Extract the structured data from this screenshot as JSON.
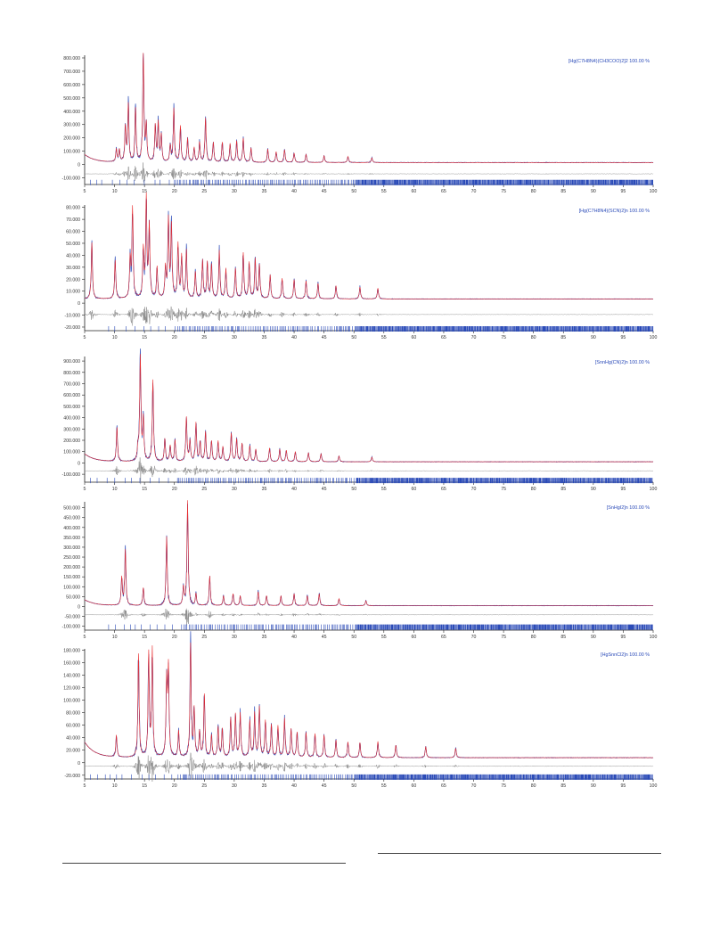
{
  "chart_data": [
    {
      "type": "line",
      "legend": "[Hg(C7H8N4)(CH3COO)2]2   100.00 %",
      "x_ticks": [
        5,
        10,
        15,
        20,
        25,
        30,
        35,
        40,
        45,
        50,
        55,
        60,
        65,
        70,
        75,
        80,
        85,
        90,
        95,
        100
      ],
      "y_ticks": [
        800000,
        700000,
        600000,
        500000,
        400000,
        300000,
        200000,
        100000,
        0,
        -100000
      ],
      "y_tick_labels": [
        "800.000",
        "700.000",
        "600.000",
        "500.000",
        "400.000",
        "300.000",
        "200.000",
        "100.000",
        "0",
        "-100.000"
      ],
      "xlim": [
        5,
        100
      ],
      "ylim": [
        -150000,
        820000
      ],
      "diff_offset": -70000,
      "tick_y": -135000,
      "peaks": [
        [
          10.3,
          95000
        ],
        [
          10.8,
          90000
        ],
        [
          11.8,
          260000
        ],
        [
          12.3,
          430000
        ],
        [
          13.5,
          400000
        ],
        [
          14.8,
          800000
        ],
        [
          15.3,
          270000
        ],
        [
          16.8,
          270000
        ],
        [
          17.3,
          290000
        ],
        [
          17.8,
          200000
        ],
        [
          19.3,
          120000
        ],
        [
          19.9,
          400000
        ],
        [
          21,
          270000
        ],
        [
          22.2,
          180000
        ],
        [
          23.3,
          110000
        ],
        [
          24.2,
          150000
        ],
        [
          25.2,
          330000
        ],
        [
          26.5,
          150000
        ],
        [
          28,
          150000
        ],
        [
          29.3,
          140000
        ],
        [
          30.4,
          160000
        ],
        [
          31.5,
          180000
        ],
        [
          32.8,
          110000
        ],
        [
          35.6,
          100000
        ],
        [
          37,
          80000
        ],
        [
          38.4,
          95000
        ],
        [
          40,
          70000
        ],
        [
          42,
          60000
        ],
        [
          45,
          50000
        ],
        [
          49,
          45000
        ],
        [
          53,
          35000
        ]
      ],
      "decay": {
        "amp": 60000,
        "rate": 0.6
      },
      "base": 15000
    },
    {
      "type": "line",
      "legend": "[Hg(C7H8N4)(SCN)2]n   100.00 %",
      "x_ticks": [
        5,
        10,
        15,
        20,
        25,
        30,
        35,
        40,
        45,
        50,
        55,
        60,
        65,
        70,
        75,
        80,
        85,
        90,
        95,
        100
      ],
      "y_ticks": [
        80000,
        70000,
        60000,
        50000,
        40000,
        30000,
        20000,
        10000,
        0,
        -10000,
        -20000
      ],
      "y_tick_labels": [
        "80.000",
        "70.000",
        "60.000",
        "50.000",
        "40.000",
        "30.000",
        "20.000",
        "10.000",
        "0",
        "-10.000",
        "-20.000"
      ],
      "xlim": [
        5,
        100
      ],
      "ylim": [
        -23000,
        82000
      ],
      "diff_offset": -9500,
      "tick_y": -21500,
      "peaks": [
        [
          6.2,
          47000
        ],
        [
          10.1,
          32000
        ],
        [
          12.6,
          32000
        ],
        [
          13,
          75000
        ],
        [
          14.8,
          40000
        ],
        [
          15.3,
          83000
        ],
        [
          15.8,
          60000
        ],
        [
          17.1,
          26000
        ],
        [
          18.5,
          25000
        ],
        [
          19,
          65000
        ],
        [
          19.5,
          60000
        ],
        [
          20.6,
          45000
        ],
        [
          21.2,
          35000
        ],
        [
          22,
          40000
        ],
        [
          23.5,
          22000
        ],
        [
          24.7,
          32000
        ],
        [
          25.5,
          30000
        ],
        [
          26.2,
          28000
        ],
        [
          27.5,
          40000
        ],
        [
          28.6,
          25000
        ],
        [
          30.2,
          25000
        ],
        [
          31.5,
          38000
        ],
        [
          32.5,
          30000
        ],
        [
          33.5,
          33000
        ],
        [
          34.2,
          28000
        ],
        [
          36,
          20000
        ],
        [
          38,
          17000
        ],
        [
          40,
          16000
        ],
        [
          42,
          15000
        ],
        [
          44,
          13000
        ],
        [
          47,
          11000
        ],
        [
          51,
          10000
        ],
        [
          54,
          9000
        ]
      ],
      "decay": {
        "amp": 0,
        "rate": 0.6
      },
      "base": 3500
    },
    {
      "type": "line",
      "legend": "[SnnHg(CN)2]n   100.00 %",
      "x_ticks": [
        5,
        10,
        15,
        20,
        25,
        30,
        35,
        40,
        45,
        50,
        55,
        60,
        65,
        70,
        75,
        80,
        85,
        90,
        95,
        100
      ],
      "y_ticks": [
        900000,
        800000,
        700000,
        600000,
        500000,
        400000,
        300000,
        200000,
        100000,
        0,
        -100000
      ],
      "y_tick_labels": [
        "900.000",
        "800.000",
        "700.000",
        "600.000",
        "500.000",
        "400.000",
        "300.000",
        "200.000",
        "100.000",
        "0",
        "-100.000"
      ],
      "xlim": [
        5,
        100
      ],
      "ylim": [
        -170000,
        940000
      ],
      "diff_offset": -70000,
      "tick_y": -155000,
      "peaks": [
        [
          10.4,
          300000
        ],
        [
          13.9,
          110000
        ],
        [
          14.3,
          920000
        ],
        [
          14.8,
          370000
        ],
        [
          16.4,
          720000
        ],
        [
          18.4,
          200000
        ],
        [
          19.3,
          140000
        ],
        [
          20.1,
          190000
        ],
        [
          22,
          390000
        ],
        [
          22.6,
          180000
        ],
        [
          23.6,
          340000
        ],
        [
          24.3,
          170000
        ],
        [
          25.2,
          260000
        ],
        [
          26.2,
          180000
        ],
        [
          27.3,
          180000
        ],
        [
          28.1,
          130000
        ],
        [
          29.5,
          250000
        ],
        [
          30.4,
          200000
        ],
        [
          31.3,
          160000
        ],
        [
          32.6,
          140000
        ],
        [
          33.6,
          110000
        ],
        [
          35.9,
          120000
        ],
        [
          37.6,
          110000
        ],
        [
          38.7,
          100000
        ],
        [
          40.2,
          90000
        ],
        [
          42.4,
          80000
        ],
        [
          44.5,
          70000
        ],
        [
          47.5,
          50000
        ],
        [
          53,
          40000
        ]
      ],
      "decay": {
        "amp": 70000,
        "rate": 0.6
      },
      "base": 10000
    },
    {
      "type": "line",
      "legend": "[SnHgI2]n   100.00 %",
      "x_ticks": [
        5,
        10,
        15,
        20,
        25,
        30,
        35,
        40,
        45,
        50,
        55,
        60,
        65,
        70,
        75,
        80,
        85,
        90,
        95,
        100
      ],
      "y_ticks": [
        500000,
        450000,
        400000,
        350000,
        300000,
        250000,
        200000,
        150000,
        100000,
        50000,
        0,
        -50000,
        -100000
      ],
      "y_tick_labels": [
        "500.000",
        "450.000",
        "400.000",
        "350.000",
        "300.000",
        "250.000",
        "200.000",
        "150.000",
        "100.000",
        "50.000",
        "0",
        "-50.000",
        "-100.000"
      ],
      "xlim": [
        5,
        100
      ],
      "ylim": [
        -120000,
        530000
      ],
      "diff_offset": -42000,
      "tick_y": -105000,
      "peaks": [
        [
          11.2,
          140000
        ],
        [
          11.8,
          280000
        ],
        [
          14.8,
          90000
        ],
        [
          18.7,
          350000
        ],
        [
          21.5,
          90000
        ],
        [
          22.2,
          530000
        ],
        [
          23.6,
          60000
        ],
        [
          25.9,
          150000
        ],
        [
          28.2,
          50000
        ],
        [
          29.8,
          60000
        ],
        [
          31,
          50000
        ],
        [
          34,
          70000
        ],
        [
          35.4,
          50000
        ],
        [
          37.8,
          50000
        ],
        [
          40,
          60000
        ],
        [
          42.2,
          50000
        ],
        [
          44.2,
          60000
        ],
        [
          47.5,
          35000
        ],
        [
          52,
          25000
        ]
      ],
      "decay": {
        "amp": 30000,
        "rate": 0.6
      },
      "base": 4000
    },
    {
      "type": "line",
      "legend": "[HgSnnCl2]n   100.00 %",
      "x_ticks": [
        5,
        10,
        15,
        20,
        25,
        30,
        35,
        40,
        45,
        50,
        55,
        60,
        65,
        70,
        75,
        80,
        85,
        90,
        95,
        100
      ],
      "y_ticks": [
        180000,
        160000,
        140000,
        120000,
        100000,
        80000,
        60000,
        40000,
        20000,
        0,
        -20000
      ],
      "y_tick_labels": [
        "180.000",
        "160.000",
        "140.000",
        "120.000",
        "100.000",
        "80.000",
        "60.000",
        "40.000",
        "20.000",
        "0",
        "-20.000"
      ],
      "xlim": [
        5,
        100
      ],
      "ylim": [
        -26000,
        182000
      ],
      "diff_offset": -5500,
      "tick_y": -23000,
      "peaks": [
        [
          10.3,
          35000
        ],
        [
          14,
          165000
        ],
        [
          15.7,
          165000
        ],
        [
          16.3,
          172000
        ],
        [
          18.7,
          120000
        ],
        [
          19,
          140000
        ],
        [
          20.7,
          42000
        ],
        [
          22.7,
          180000
        ],
        [
          23.3,
          75000
        ],
        [
          24.2,
          40000
        ],
        [
          25,
          100000
        ],
        [
          26.2,
          35000
        ],
        [
          27.3,
          48000
        ],
        [
          28,
          45000
        ],
        [
          29.4,
          62000
        ],
        [
          30.2,
          68000
        ],
        [
          31,
          70000
        ],
        [
          32.6,
          58000
        ],
        [
          33.4,
          70000
        ],
        [
          34.2,
          80000
        ],
        [
          35.2,
          58000
        ],
        [
          36.2,
          52000
        ],
        [
          37.3,
          50000
        ],
        [
          38.4,
          62000
        ],
        [
          39.5,
          45000
        ],
        [
          40.5,
          40000
        ],
        [
          42,
          40000
        ],
        [
          43.5,
          38000
        ],
        [
          45,
          36000
        ],
        [
          47,
          28000
        ],
        [
          49,
          25000
        ],
        [
          51,
          24000
        ],
        [
          54,
          26000
        ],
        [
          57,
          20000
        ],
        [
          62,
          18000
        ],
        [
          67,
          15000
        ]
      ],
      "decay": {
        "amp": 25000,
        "rate": 0.6
      },
      "base": 8000
    }
  ],
  "colors": {
    "observed": "#2b4bb8",
    "calculated": "#e8292b",
    "difference": "#8a8a8a",
    "reflections": "#2b4bb8",
    "axis": "#222222",
    "legend_text": "#2b4bb8"
  }
}
